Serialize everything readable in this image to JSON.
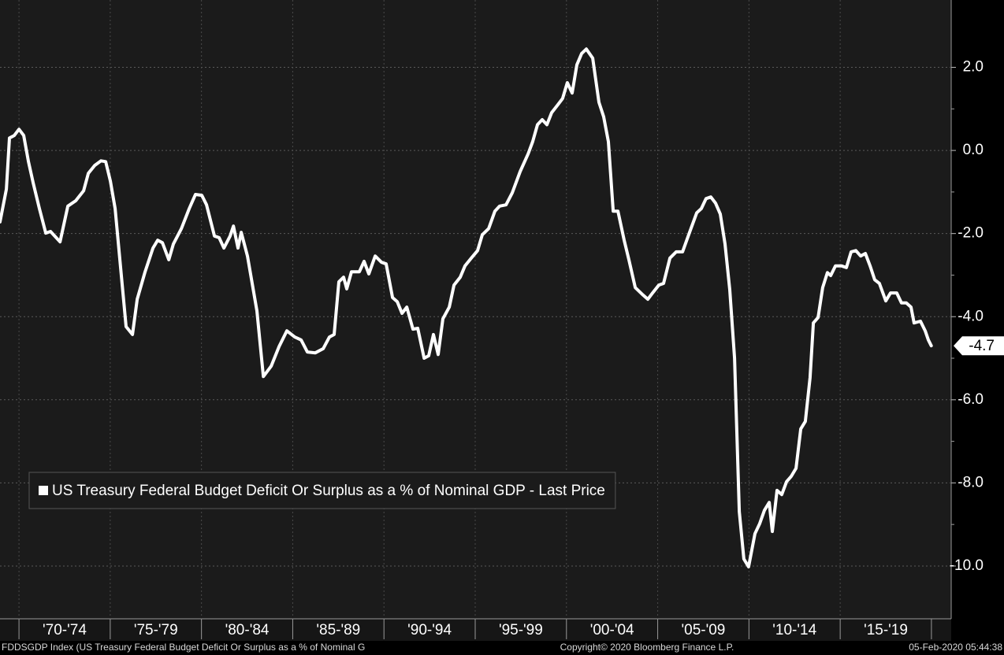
{
  "chart_data": {
    "type": "line",
    "x": [
      1968.96,
      1969.31,
      1969.48,
      1969.74,
      1970.0,
      1970.26,
      1970.52,
      1970.78,
      1971.12,
      1971.47,
      1971.73,
      1972.25,
      1972.68,
      1973.11,
      1973.54,
      1973.8,
      1974.15,
      1974.49,
      1974.75,
      1975.01,
      1975.27,
      1975.53,
      1975.87,
      1976.22,
      1976.48,
      1976.91,
      1977.34,
      1977.6,
      1977.86,
      1978.21,
      1978.46,
      1978.9,
      1979.33,
      1979.67,
      1980.02,
      1980.28,
      1980.71,
      1980.97,
      1981.23,
      1981.57,
      1981.75,
      1982.0,
      1982.18,
      1982.52,
      1982.78,
      1983.04,
      1983.39,
      1983.82,
      1984.25,
      1984.68,
      1985.11,
      1985.46,
      1985.8,
      1986.24,
      1986.67,
      1987.01,
      1987.27,
      1987.53,
      1987.79,
      1987.96,
      1988.22,
      1988.65,
      1988.91,
      1989.17,
      1989.52,
      1989.86,
      1990.12,
      1990.47,
      1990.73,
      1990.99,
      1991.25,
      1991.59,
      1991.85,
      1992.2,
      1992.45,
      1992.71,
      1992.97,
      1993.23,
      1993.58,
      1993.84,
      1994.18,
      1994.44,
      1994.79,
      1995.13,
      1995.39,
      1995.74,
      1996.08,
      1996.34,
      1996.69,
      1997.03,
      1997.46,
      1997.9,
      1998.15,
      1998.41,
      1998.67,
      1998.93,
      1999.19,
      1999.53,
      1999.79,
      2000.05,
      2000.31,
      2000.57,
      2000.83,
      2001.09,
      2001.44,
      2001.78,
      2002.04,
      2002.3,
      2002.56,
      2002.82,
      2003.16,
      2003.42,
      2003.77,
      2004.2,
      2004.46,
      2004.72,
      2005.06,
      2005.32,
      2005.67,
      2006.01,
      2006.36,
      2006.7,
      2007.14,
      2007.39,
      2007.65,
      2007.91,
      2008.17,
      2008.43,
      2008.69,
      2008.95,
      2009.21,
      2009.47,
      2009.72,
      2009.98,
      2010.33,
      2010.59,
      2010.85,
      2011.11,
      2011.28,
      2011.54,
      2011.8,
      2012.06,
      2012.32,
      2012.58,
      2012.84,
      2013.09,
      2013.35,
      2013.53,
      2013.79,
      2014.04,
      2014.3,
      2014.48,
      2014.74,
      2015.08,
      2015.34,
      2015.6,
      2015.86,
      2016.12,
      2016.38,
      2016.64,
      2016.89,
      2017.15,
      2017.5,
      2017.76,
      2018.1,
      2018.36,
      2018.62,
      2018.88,
      2019.05,
      2019.4,
      2019.66,
      2019.83,
      2019.99
    ],
    "series": [
      {
        "name": "US Treasury Federal Budget Deficit Or Surplus as a % of Nominal GDP - Last Price",
        "color": "#ffffff",
        "values": [
          -1.72,
          -0.93,
          0.3,
          0.36,
          0.51,
          0.36,
          -0.27,
          -0.78,
          -1.4,
          -1.99,
          -1.95,
          -2.2,
          -1.34,
          -1.21,
          -0.97,
          -0.55,
          -0.36,
          -0.25,
          -0.27,
          -0.74,
          -1.4,
          -2.63,
          -4.24,
          -4.43,
          -3.58,
          -2.92,
          -2.35,
          -2.16,
          -2.22,
          -2.63,
          -2.25,
          -1.88,
          -1.4,
          -1.06,
          -1.08,
          -1.31,
          -2.06,
          -2.1,
          -2.35,
          -2.06,
          -1.82,
          -2.35,
          -1.97,
          -2.54,
          -3.2,
          -3.86,
          -5.44,
          -5.19,
          -4.72,
          -4.34,
          -4.49,
          -4.56,
          -4.85,
          -4.87,
          -4.77,
          -4.49,
          -4.43,
          -3.16,
          -3.05,
          -3.33,
          -2.92,
          -2.92,
          -2.67,
          -2.97,
          -2.54,
          -2.69,
          -2.73,
          -3.54,
          -3.64,
          -3.92,
          -3.77,
          -4.3,
          -4.28,
          -5.0,
          -4.94,
          -4.43,
          -4.91,
          -4.05,
          -3.77,
          -3.24,
          -3.05,
          -2.78,
          -2.59,
          -2.41,
          -2.03,
          -1.88,
          -1.46,
          -1.34,
          -1.31,
          -1.02,
          -0.51,
          -0.08,
          0.21,
          0.62,
          0.74,
          0.62,
          0.91,
          1.1,
          1.25,
          1.63,
          1.38,
          2.06,
          2.33,
          2.44,
          2.22,
          1.16,
          0.81,
          0.21,
          -1.46,
          -1.46,
          -2.16,
          -2.63,
          -3.3,
          -3.48,
          -3.58,
          -3.43,
          -3.24,
          -3.2,
          -2.59,
          -2.44,
          -2.44,
          -2.03,
          -1.5,
          -1.4,
          -1.16,
          -1.12,
          -1.27,
          -1.53,
          -2.25,
          -3.35,
          -5.0,
          -8.69,
          -9.83,
          -10.02,
          -9.22,
          -8.98,
          -8.66,
          -8.47,
          -9.17,
          -8.18,
          -8.28,
          -7.97,
          -7.84,
          -7.65,
          -6.7,
          -6.52,
          -5.47,
          -4.15,
          -4.02,
          -3.3,
          -2.94,
          -3.01,
          -2.78,
          -2.78,
          -2.82,
          -2.44,
          -2.41,
          -2.54,
          -2.48,
          -2.78,
          -3.11,
          -3.2,
          -3.62,
          -3.43,
          -3.43,
          -3.67,
          -3.67,
          -3.77,
          -4.15,
          -4.11,
          -4.34,
          -4.56,
          -4.7
        ]
      }
    ],
    "xlim": [
      1968.96,
      2021.04
    ],
    "ylim": [
      -11.27,
      3.62
    ],
    "yticks": [
      {
        "value": 2,
        "label": "2.0"
      },
      {
        "value": 0,
        "label": "0.0"
      },
      {
        "value": -2,
        "label": "-2.0"
      },
      {
        "value": -4,
        "label": "-4.0"
      },
      {
        "value": -6,
        "label": "-6.0"
      },
      {
        "value": -8,
        "label": "-8.0"
      },
      {
        "value": -10,
        "label": "-10.0"
      }
    ],
    "x_periods": [
      {
        "start": 1970,
        "end": 1975,
        "label": "'70-'74"
      },
      {
        "start": 1975,
        "end": 1980,
        "label": "'75-'79"
      },
      {
        "start": 1980,
        "end": 1985,
        "label": "'80-'84"
      },
      {
        "start": 1985,
        "end": 1990,
        "label": "'85-'89"
      },
      {
        "start": 1990,
        "end": 1995,
        "label": "'90-'94"
      },
      {
        "start": 1995,
        "end": 2000,
        "label": "'95-'99"
      },
      {
        "start": 2000,
        "end": 2005,
        "label": "'00-'04"
      },
      {
        "start": 2005,
        "end": 2010,
        "label": "'05-'09"
      },
      {
        "start": 2010,
        "end": 2015,
        "label": "'10-'14"
      },
      {
        "start": 2015,
        "end": 2020,
        "label": "'15-'19"
      }
    ],
    "grid": true,
    "legend": "bottom-left",
    "footer_left": "FDDSGDP Index (US Treasury Federal Budget Deficit Or Surplus as a % of Nominal G",
    "footer_center": "Copyright© 2020 Bloomberg Finance L.P.",
    "footer_right": "05-Feb-2020 05:44:38"
  }
}
